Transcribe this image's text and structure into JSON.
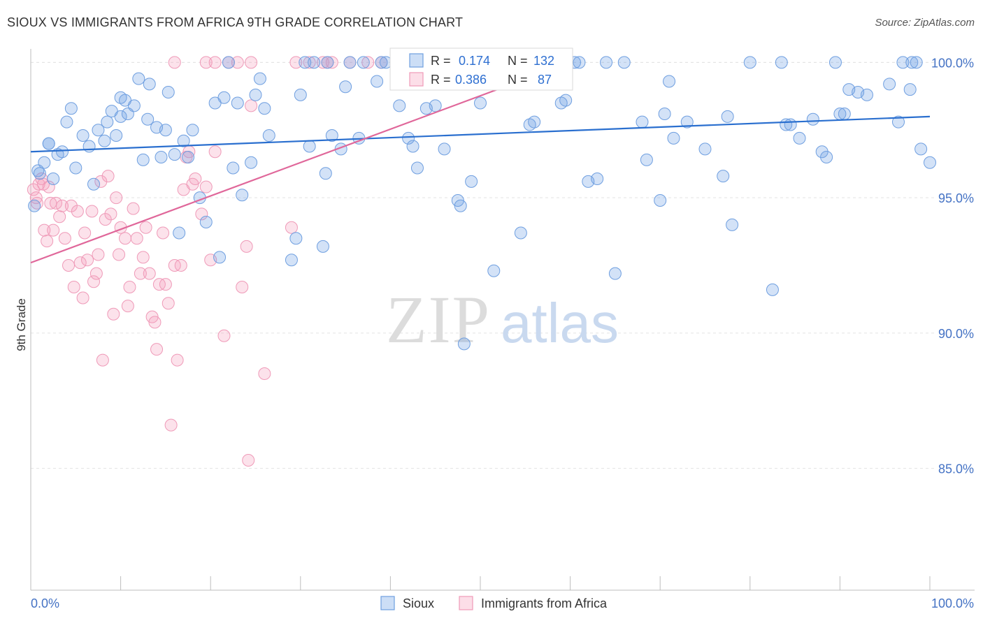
{
  "title": "SIOUX VS IMMIGRANTS FROM AFRICA 9TH GRADE CORRELATION CHART",
  "source": "Source: ZipAtlas.com",
  "watermark": {
    "zip": "ZIP",
    "atlas": "atlas"
  },
  "colors": {
    "sioux_fill": "rgba(110,160,230,0.30)",
    "sioux_stroke": "#6f9fe0",
    "sioux_line": "#2a6fcf",
    "africa_fill": "rgba(245,160,190,0.30)",
    "africa_stroke": "#ef9ab8",
    "africa_line": "#e0679a",
    "tick_label": "#4472c4"
  },
  "legend_top": {
    "rows": [
      {
        "r_label": "R = ",
        "r_value": "0.174",
        "n_label": "N = ",
        "n_value": "132"
      },
      {
        "r_label": "R = ",
        "r_value": "0.386",
        "n_label": "N = ",
        "n_value": "87"
      }
    ]
  },
  "legend_bottom": [
    "Sioux",
    "Immigrants from Africa"
  ],
  "chart_data": {
    "type": "scatter",
    "xlabel": "",
    "ylabel": "9th Grade",
    "xlim": [
      0,
      100
    ],
    "ylim": [
      80.5,
      100.5
    ],
    "x_tick_labels": [
      "0.0%",
      "100.0%"
    ],
    "y_ticks": [
      85,
      90,
      95,
      100
    ],
    "y_tick_labels": [
      "85.0%",
      "90.0%",
      "95.0%",
      "100.0%"
    ],
    "grid": true,
    "series": [
      {
        "name": "Sioux",
        "R": 0.174,
        "N": 132,
        "trend": [
          [
            0,
            96.7
          ],
          [
            100,
            98.0
          ]
        ],
        "points": [
          [
            0.4,
            94.7
          ],
          [
            0.8,
            96.0
          ],
          [
            1.0,
            95.9
          ],
          [
            1.5,
            96.3
          ],
          [
            2.0,
            97.0
          ],
          [
            2.5,
            95.7
          ],
          [
            3.0,
            96.6
          ],
          [
            3.5,
            96.7
          ],
          [
            4.0,
            97.8
          ],
          [
            4.5,
            98.3
          ],
          [
            5.0,
            96.1
          ],
          [
            5.8,
            97.3
          ],
          [
            6.5,
            96.9
          ],
          [
            7.0,
            95.5
          ],
          [
            7.5,
            97.5
          ],
          [
            8.2,
            97.1
          ],
          [
            8.5,
            97.8
          ],
          [
            9.0,
            98.2
          ],
          [
            9.5,
            97.3
          ],
          [
            10.0,
            98.7
          ],
          [
            10.5,
            98.6
          ],
          [
            10.8,
            98.1
          ],
          [
            11.5,
            98.4
          ],
          [
            12.0,
            99.4
          ],
          [
            12.5,
            96.4
          ],
          [
            13.0,
            97.9
          ],
          [
            13.2,
            99.2
          ],
          [
            14.0,
            97.6
          ],
          [
            14.5,
            96.5
          ],
          [
            15.0,
            97.5
          ],
          [
            15.3,
            98.9
          ],
          [
            16.0,
            96.6
          ],
          [
            16.5,
            93.7
          ],
          [
            17.0,
            97.1
          ],
          [
            17.5,
            96.5
          ],
          [
            18.0,
            97.5
          ],
          [
            18.8,
            95.0
          ],
          [
            19.5,
            94.1
          ],
          [
            20.5,
            98.5
          ],
          [
            21.0,
            92.8
          ],
          [
            21.5,
            98.7
          ],
          [
            22.0,
            100.0
          ],
          [
            22.5,
            96.1
          ],
          [
            23.0,
            98.5
          ],
          [
            23.5,
            95.1
          ],
          [
            24.5,
            96.3
          ],
          [
            25.0,
            98.8
          ],
          [
            25.5,
            99.4
          ],
          [
            26.0,
            98.3
          ],
          [
            26.5,
            97.3
          ],
          [
            29.0,
            92.7
          ],
          [
            29.5,
            93.5
          ],
          [
            30.0,
            98.8
          ],
          [
            30.5,
            100.0
          ],
          [
            31.0,
            96.9
          ],
          [
            31.5,
            100.0
          ],
          [
            32.5,
            93.2
          ],
          [
            32.8,
            95.9
          ],
          [
            33.0,
            100.0
          ],
          [
            33.5,
            97.3
          ],
          [
            34.5,
            96.8
          ],
          [
            35.0,
            99.1
          ],
          [
            35.5,
            100.0
          ],
          [
            36.5,
            97.2
          ],
          [
            38.5,
            99.3
          ],
          [
            39.0,
            100.0
          ],
          [
            41.0,
            98.4
          ],
          [
            42.0,
            97.2
          ],
          [
            42.5,
            96.9
          ],
          [
            43.0,
            96.1
          ],
          [
            47.5,
            94.9
          ],
          [
            47.8,
            94.7
          ],
          [
            48.2,
            89.6
          ],
          [
            49.0,
            95.6
          ],
          [
            50.0,
            98.5
          ],
          [
            50.5,
            100.0
          ],
          [
            51.5,
            92.3
          ],
          [
            54.0,
            100.0
          ],
          [
            54.5,
            93.7
          ],
          [
            55.5,
            97.7
          ],
          [
            56.0,
            97.8
          ],
          [
            59.0,
            98.5
          ],
          [
            59.5,
            98.6
          ],
          [
            60.5,
            100.0
          ],
          [
            62.0,
            95.6
          ],
          [
            63.0,
            95.7
          ],
          [
            64.0,
            100.0
          ],
          [
            65.0,
            92.2
          ],
          [
            66.0,
            100.0
          ],
          [
            68.0,
            97.8
          ],
          [
            68.5,
            96.4
          ],
          [
            70.0,
            94.9
          ],
          [
            70.5,
            98.1
          ],
          [
            71.0,
            99.3
          ],
          [
            71.5,
            97.2
          ],
          [
            73.0,
            97.8
          ],
          [
            75.0,
            96.8
          ],
          [
            77.0,
            95.8
          ],
          [
            77.5,
            98.0
          ],
          [
            78.0,
            94.0
          ],
          [
            80.0,
            100.0
          ],
          [
            82.5,
            91.6
          ],
          [
            83.5,
            100.0
          ],
          [
            84.0,
            97.7
          ],
          [
            84.5,
            97.7
          ],
          [
            85.5,
            97.2
          ],
          [
            87.0,
            97.9
          ],
          [
            88.0,
            96.7
          ],
          [
            88.5,
            96.5
          ],
          [
            89.5,
            100.0
          ],
          [
            90.0,
            98.1
          ],
          [
            90.5,
            98.1
          ],
          [
            91.0,
            99.0
          ],
          [
            92.0,
            98.9
          ],
          [
            93.0,
            98.8
          ],
          [
            95.5,
            99.2
          ],
          [
            96.5,
            97.8
          ],
          [
            97.0,
            100.0
          ],
          [
            97.8,
            99.0
          ],
          [
            98.0,
            100.0
          ],
          [
            98.5,
            100.0
          ],
          [
            99.0,
            96.8
          ],
          [
            100.0,
            96.3
          ],
          [
            2.0,
            97.0
          ],
          [
            10.0,
            98.0
          ],
          [
            45.0,
            98.4
          ],
          [
            57.0,
            100.0
          ],
          [
            61.0,
            100.0
          ],
          [
            44.0,
            98.3
          ],
          [
            46.0,
            96.8
          ],
          [
            39.5,
            100.0
          ],
          [
            37.0,
            100.0
          ]
        ]
      },
      {
        "name": "Immigrants from Africa",
        "R": 0.386,
        "N": 87,
        "trend": [
          [
            0,
            92.6
          ],
          [
            60,
            100.0
          ]
        ],
        "points": [
          [
            0.3,
            95.3
          ],
          [
            0.6,
            95.0
          ],
          [
            0.9,
            95.5
          ],
          [
            1.2,
            95.7
          ],
          [
            1.5,
            93.8
          ],
          [
            1.8,
            93.4
          ],
          [
            2.0,
            95.4
          ],
          [
            2.2,
            94.8
          ],
          [
            2.5,
            93.8
          ],
          [
            2.8,
            94.8
          ],
          [
            3.2,
            94.3
          ],
          [
            3.5,
            94.7
          ],
          [
            3.8,
            93.5
          ],
          [
            4.2,
            92.5
          ],
          [
            4.5,
            94.7
          ],
          [
            4.8,
            91.7
          ],
          [
            5.2,
            94.5
          ],
          [
            5.5,
            92.6
          ],
          [
            5.8,
            91.3
          ],
          [
            6.0,
            93.7
          ],
          [
            6.3,
            92.7
          ],
          [
            6.8,
            94.5
          ],
          [
            7.0,
            91.9
          ],
          [
            7.3,
            92.2
          ],
          [
            7.5,
            92.9
          ],
          [
            7.8,
            95.6
          ],
          [
            8.0,
            89.0
          ],
          [
            8.3,
            94.2
          ],
          [
            8.6,
            95.8
          ],
          [
            8.9,
            94.4
          ],
          [
            9.2,
            90.7
          ],
          [
            9.5,
            95.0
          ],
          [
            9.8,
            92.9
          ],
          [
            10.0,
            93.9
          ],
          [
            10.5,
            93.5
          ],
          [
            10.8,
            91.0
          ],
          [
            11.0,
            91.7
          ],
          [
            11.4,
            94.6
          ],
          [
            11.8,
            93.5
          ],
          [
            12.2,
            92.2
          ],
          [
            12.5,
            92.8
          ],
          [
            12.8,
            93.9
          ],
          [
            13.2,
            92.2
          ],
          [
            13.5,
            90.6
          ],
          [
            13.8,
            90.4
          ],
          [
            14.0,
            89.4
          ],
          [
            14.3,
            91.8
          ],
          [
            14.7,
            93.7
          ],
          [
            15.0,
            91.8
          ],
          [
            15.3,
            91.1
          ],
          [
            15.6,
            86.6
          ],
          [
            16.0,
            92.5
          ],
          [
            16.3,
            89.0
          ],
          [
            16.7,
            92.5
          ],
          [
            17.0,
            95.3
          ],
          [
            17.3,
            96.5
          ],
          [
            17.6,
            96.7
          ],
          [
            18.0,
            95.5
          ],
          [
            18.3,
            95.7
          ],
          [
            19.0,
            94.4
          ],
          [
            19.5,
            95.4
          ],
          [
            20.0,
            92.7
          ],
          [
            20.5,
            96.7
          ],
          [
            21.5,
            89.9
          ],
          [
            22.0,
            100.0
          ],
          [
            23.5,
            91.7
          ],
          [
            24.0,
            93.2
          ],
          [
            24.2,
            85.3
          ],
          [
            24.5,
            98.4
          ],
          [
            26.0,
            88.5
          ],
          [
            29.0,
            93.9
          ],
          [
            29.5,
            100.0
          ],
          [
            31.0,
            100.0
          ],
          [
            32.5,
            100.0
          ],
          [
            33.0,
            100.0
          ],
          [
            33.5,
            100.0
          ],
          [
            35.5,
            100.0
          ],
          [
            16.0,
            100.0
          ],
          [
            19.5,
            100.0
          ],
          [
            20.5,
            100.0
          ],
          [
            23.0,
            100.0
          ],
          [
            24.5,
            100.0
          ],
          [
            37.5,
            100.0
          ],
          [
            39.0,
            100.0
          ],
          [
            41.0,
            100.0
          ],
          [
            0.7,
            94.8
          ],
          [
            1.4,
            95.5
          ]
        ]
      }
    ]
  }
}
